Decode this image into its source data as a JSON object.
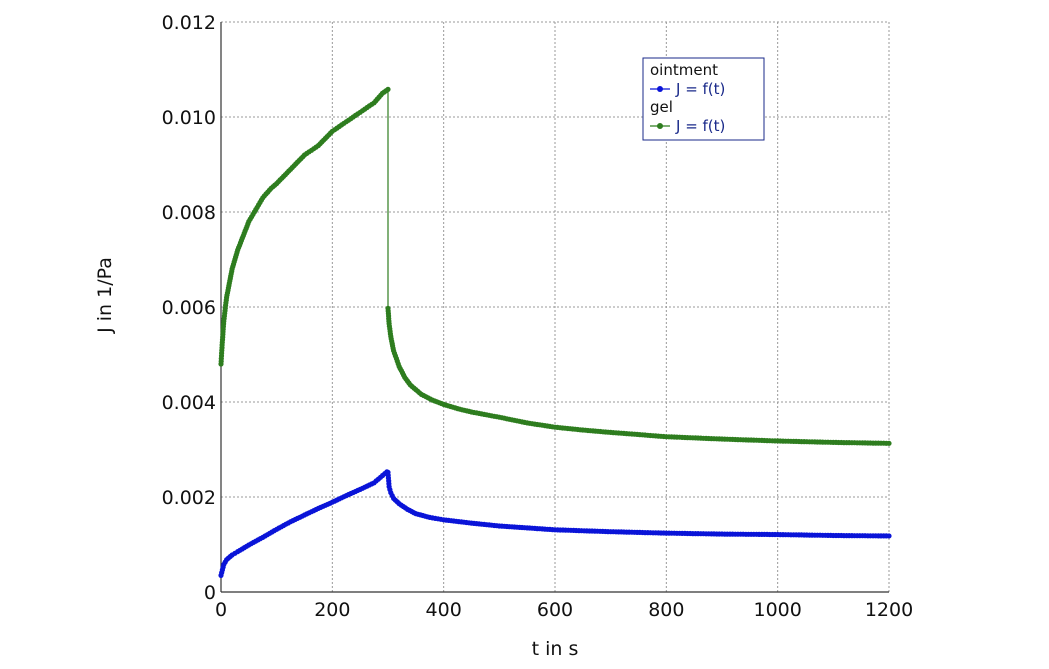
{
  "chart_data": {
    "type": "scatter",
    "title": "",
    "xlabel": "t in s",
    "ylabel": "J in 1/Pa",
    "xlim": [
      0,
      1200
    ],
    "ylim": [
      0,
      0.012
    ],
    "xticks": [
      "0",
      "200",
      "400",
      "600",
      "800",
      "1000",
      "1200"
    ],
    "yticks": [
      "0",
      "0.002",
      "0.004",
      "0.006",
      "0.008",
      "0.010",
      "0.012"
    ],
    "grid": true,
    "legend_position": "top-right",
    "series": [
      {
        "name": "ointment",
        "legend_text": "J = f(t)",
        "color": "#0a14d8",
        "x": [
          0,
          5,
          10,
          20,
          30,
          50,
          75,
          100,
          125,
          150,
          175,
          200,
          225,
          250,
          275,
          298,
          300,
          302,
          305,
          310,
          320,
          335,
          350,
          375,
          400,
          450,
          500,
          550,
          600,
          700,
          800,
          900,
          1000,
          1100,
          1200
        ],
        "y": [
          0.00035,
          0.00058,
          0.00068,
          0.00078,
          0.00085,
          0.00099,
          0.00115,
          0.00132,
          0.00148,
          0.00162,
          0.00176,
          0.00189,
          0.00203,
          0.00216,
          0.0023,
          0.00253,
          0.00252,
          0.00222,
          0.00209,
          0.00197,
          0.00186,
          0.00174,
          0.00165,
          0.00157,
          0.00152,
          0.00145,
          0.00139,
          0.00135,
          0.00131,
          0.00127,
          0.00124,
          0.00122,
          0.00121,
          0.00119,
          0.00118
        ]
      },
      {
        "name": "gel",
        "legend_text": "J = f(t)",
        "color": "#2e7d1f",
        "x": [
          0,
          2,
          5,
          10,
          15,
          20,
          30,
          40,
          50,
          60,
          75,
          90,
          100,
          125,
          150,
          175,
          200,
          225,
          250,
          275,
          290,
          300,
          300,
          302,
          305,
          310,
          320,
          330,
          340,
          360,
          380,
          400,
          425,
          450,
          500,
          550,
          600,
          650,
          700,
          800,
          900,
          1000,
          1100,
          1200
        ],
        "y": [
          0.0048,
          0.0052,
          0.0057,
          0.0062,
          0.0065,
          0.0068,
          0.0072,
          0.0075,
          0.0078,
          0.008,
          0.0083,
          0.0085,
          0.0086,
          0.0089,
          0.0092,
          0.0094,
          0.0097,
          0.0099,
          0.0101,
          0.0103,
          0.0105,
          0.01058,
          0.00597,
          0.00565,
          0.00538,
          0.00508,
          0.00475,
          0.00452,
          0.00436,
          0.00416,
          0.00404,
          0.00395,
          0.00386,
          0.00379,
          0.00368,
          0.00356,
          0.00347,
          0.00341,
          0.00336,
          0.00327,
          0.00322,
          0.00318,
          0.00315,
          0.00313
        ]
      }
    ]
  }
}
